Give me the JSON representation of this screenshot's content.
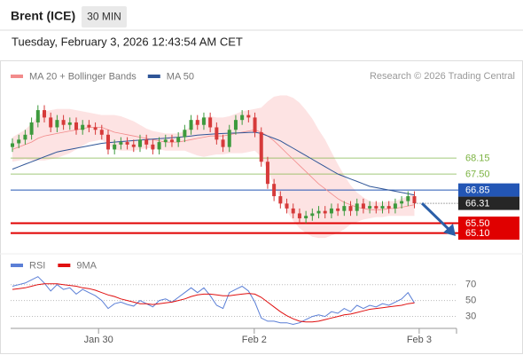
{
  "header": {
    "title": "Brent (ICE)",
    "timeframe": "30 MIN",
    "timestamp": "Tuesday, February 3, 2026 12:43:54 AM CET"
  },
  "chart_data": [
    {
      "type": "candlestick",
      "open": [
        68.6,
        68.75,
        68.9,
        69.1,
        69.6,
        70.1,
        69.8,
        69.4,
        69.7,
        69.5,
        69.6,
        69.3,
        69.5,
        69.4,
        69.3,
        69.1,
        68.5,
        68.7,
        68.8,
        68.7,
        68.6,
        68.9,
        68.7,
        68.5,
        68.8,
        68.9,
        68.8,
        69.0,
        69.3,
        69.7,
        69.5,
        69.8,
        69.4,
        68.9,
        68.6,
        69.3,
        69.7,
        69.9,
        69.8,
        69.2,
        68.0,
        67.1,
        66.6,
        66.3,
        66.1,
        65.9,
        65.7,
        65.8,
        65.9,
        66.0,
        65.9,
        66.1,
        66.0,
        66.2,
        66.0,
        66.3,
        66.1,
        66.2,
        66.1,
        66.2,
        66.1,
        66.3,
        66.4,
        66.6
      ],
      "high": [
        68.95,
        69.1,
        69.3,
        69.8,
        70.3,
        70.3,
        70.0,
        69.9,
        69.9,
        69.8,
        69.8,
        69.7,
        69.7,
        69.6,
        69.5,
        69.3,
        68.9,
        69.0,
        69.0,
        68.9,
        69.1,
        69.1,
        68.9,
        69.0,
        69.1,
        69.1,
        69.2,
        69.5,
        69.9,
        69.9,
        70.0,
        70.0,
        69.6,
        69.1,
        69.5,
        69.9,
        70.1,
        70.1,
        70.0,
        69.4,
        68.2,
        67.3,
        66.8,
        66.5,
        66.3,
        66.1,
        66.0,
        66.1,
        66.2,
        66.2,
        66.3,
        66.3,
        66.4,
        66.4,
        66.5,
        66.5,
        66.4,
        66.4,
        66.4,
        66.4,
        66.5,
        66.6,
        66.8,
        66.8
      ],
      "low": [
        68.4,
        68.55,
        68.7,
        68.9,
        69.4,
        69.6,
        69.2,
        69.2,
        69.3,
        69.3,
        69.1,
        69.1,
        69.2,
        69.1,
        68.9,
        68.3,
        68.3,
        68.5,
        68.5,
        68.4,
        68.4,
        68.5,
        68.3,
        68.3,
        68.6,
        68.6,
        68.6,
        68.8,
        69.1,
        69.3,
        69.3,
        69.2,
        68.7,
        68.4,
        68.4,
        69.1,
        69.5,
        69.6,
        69.0,
        67.8,
        66.9,
        66.4,
        66.1,
        65.9,
        65.7,
        65.5,
        65.5,
        65.6,
        65.7,
        65.7,
        65.7,
        65.8,
        65.8,
        65.8,
        65.8,
        65.9,
        65.9,
        65.9,
        65.9,
        65.9,
        65.9,
        66.1,
        66.2,
        66.11
      ],
      "close": [
        68.75,
        68.9,
        69.1,
        69.6,
        70.1,
        69.8,
        69.4,
        69.7,
        69.5,
        69.6,
        69.3,
        69.5,
        69.4,
        69.3,
        69.1,
        68.5,
        68.7,
        68.8,
        68.7,
        68.6,
        68.9,
        68.7,
        68.5,
        68.8,
        68.9,
        68.8,
        69.0,
        69.3,
        69.7,
        69.5,
        69.8,
        69.4,
        68.9,
        68.6,
        69.3,
        69.7,
        69.9,
        69.8,
        69.2,
        68.0,
        67.1,
        66.6,
        66.3,
        66.1,
        65.9,
        65.7,
        65.8,
        65.9,
        66.0,
        65.9,
        66.1,
        66.0,
        66.2,
        66.0,
        66.3,
        66.1,
        66.2,
        66.1,
        66.2,
        66.1,
        66.3,
        66.4,
        66.6,
        66.31
      ],
      "up_color": "#3d9a3d",
      "down_color": "#d63a3a",
      "last_color": "#262626",
      "overlays": [
        {
          "name": "MA 20 + Bollinger Bands",
          "color": "#f28b8b",
          "band_color": "#fde3e3",
          "values": [
            68.5,
            68.6,
            68.7,
            68.8,
            68.95,
            69.05,
            69.1,
            69.15,
            69.2,
            69.25,
            69.3,
            69.35,
            69.4,
            69.4,
            69.4,
            69.3,
            69.2,
            69.15,
            69.1,
            69.05,
            69.0,
            68.95,
            68.9,
            68.85,
            68.8,
            68.8,
            68.8,
            68.85,
            68.9,
            68.95,
            69.0,
            69.05,
            69.05,
            69.05,
            69.1,
            69.15,
            69.2,
            69.25,
            69.3,
            69.2,
            69.05,
            68.85,
            68.6,
            68.35,
            68.1,
            67.85,
            67.6,
            67.35,
            67.1,
            66.9,
            66.7,
            66.5,
            66.35,
            66.25,
            66.15,
            66.1,
            66.05,
            66.05,
            66.05,
            66.1,
            66.1,
            66.15,
            66.2,
            66.25
          ],
          "upper": [
            69.0,
            69.15,
            69.3,
            69.55,
            69.85,
            70.05,
            70.1,
            70.15,
            70.15,
            70.15,
            70.1,
            70.05,
            70.0,
            69.95,
            69.9,
            69.9,
            69.9,
            69.85,
            69.75,
            69.65,
            69.5,
            69.35,
            69.25,
            69.2,
            69.15,
            69.15,
            69.15,
            69.25,
            69.45,
            69.65,
            69.8,
            69.85,
            69.8,
            69.8,
            69.85,
            69.95,
            70.05,
            70.1,
            70.15,
            70.2,
            70.45,
            70.65,
            70.7,
            70.7,
            70.6,
            70.4,
            70.1,
            69.75,
            69.3,
            68.9,
            68.4,
            67.9,
            67.45,
            67.05,
            66.75,
            66.55,
            66.4,
            66.35,
            66.35,
            66.4,
            66.4,
            66.5,
            66.6,
            66.7
          ],
          "lower": [
            68.0,
            68.05,
            68.1,
            68.05,
            68.05,
            68.05,
            68.1,
            68.15,
            68.25,
            68.35,
            68.5,
            68.65,
            68.8,
            68.85,
            68.9,
            68.7,
            68.5,
            68.45,
            68.45,
            68.45,
            68.5,
            68.55,
            68.55,
            68.5,
            68.45,
            68.45,
            68.45,
            68.45,
            68.35,
            68.25,
            68.2,
            68.25,
            68.3,
            68.3,
            68.35,
            68.35,
            68.35,
            68.4,
            68.45,
            68.2,
            67.65,
            67.05,
            66.5,
            66.0,
            65.6,
            65.3,
            65.1,
            64.95,
            64.9,
            64.9,
            65.0,
            65.1,
            65.25,
            65.45,
            65.55,
            65.65,
            65.7,
            65.75,
            65.75,
            65.8,
            65.8,
            65.8,
            65.8,
            65.8
          ]
        },
        {
          "name": "MA 50",
          "color": "#2f5597",
          "values": [
            67.7,
            67.8,
            67.9,
            68.0,
            68.1,
            68.2,
            68.3,
            68.4,
            68.45,
            68.5,
            68.55,
            68.6,
            68.65,
            68.7,
            68.75,
            68.78,
            68.8,
            68.82,
            68.84,
            68.86,
            68.88,
            68.9,
            68.92,
            68.94,
            68.96,
            68.98,
            69.0,
            69.02,
            69.05,
            69.08,
            69.1,
            69.12,
            69.14,
            69.15,
            69.16,
            69.17,
            69.18,
            69.19,
            69.2,
            69.15,
            69.05,
            68.95,
            68.85,
            68.7,
            68.55,
            68.4,
            68.25,
            68.1,
            67.95,
            67.8,
            67.65,
            67.5,
            67.4,
            67.3,
            67.2,
            67.1,
            67.0,
            66.95,
            66.9,
            66.85,
            66.8,
            66.75,
            66.7,
            66.65
          ]
        }
      ],
      "levels": {
        "values": [
          68.15,
          67.5,
          66.85,
          65.5,
          65.1
        ],
        "value_labels": [
          "68.15",
          "67.50",
          "66.85",
          "65.50",
          "65.10"
        ],
        "colors": [
          "#7cb342",
          "#7cb342",
          "#2356b5",
          "#e00000",
          "#e00000"
        ],
        "boxed": [
          false,
          false,
          true,
          true,
          true
        ]
      },
      "credit": "Research © 2026 Trading Central",
      "xlim": [
        -0.28,
        69.6
      ],
      "ylim": [
        64.4,
        71.15
      ]
    },
    {
      "type": "line",
      "series": [
        {
          "name": "RSI",
          "color": "#5b7fd6",
          "values": [
            68,
            70,
            72,
            76,
            80,
            72,
            62,
            70,
            64,
            66,
            58,
            64,
            60,
            56,
            50,
            40,
            46,
            48,
            45,
            43,
            50,
            46,
            42,
            50,
            52,
            48,
            54,
            60,
            66,
            60,
            66,
            56,
            44,
            40,
            60,
            64,
            68,
            62,
            48,
            28,
            24,
            24,
            22,
            22,
            20,
            22,
            26,
            30,
            32,
            30,
            36,
            34,
            40,
            36,
            44,
            40,
            44,
            42,
            46,
            44,
            48,
            52,
            60,
            47
          ]
        },
        {
          "name": "9MA",
          "color": "#e01010",
          "values": [
            64,
            65,
            66,
            68,
            70,
            71,
            71,
            71,
            70,
            69,
            68,
            66,
            65,
            63,
            60,
            57,
            55,
            52,
            50,
            48,
            46,
            46,
            45,
            46,
            47,
            48,
            50,
            52,
            55,
            57,
            58,
            58,
            57,
            56,
            56,
            57,
            58,
            59,
            58,
            54,
            48,
            42,
            36,
            31,
            27,
            24,
            23,
            23,
            24,
            26,
            28,
            30,
            32,
            33,
            35,
            37,
            39,
            40,
            41,
            42,
            43,
            44,
            46,
            47
          ]
        }
      ],
      "xlim": [
        -0.28,
        69.6
      ],
      "ylim": [
        15,
        102
      ],
      "yticks": [
        70,
        50,
        30
      ],
      "xticks": [
        {
          "value": 13.5,
          "label": "Jan 30"
        },
        {
          "value": 37.9,
          "label": "Feb 2"
        },
        {
          "value": 63.75,
          "label": "Feb 3"
        }
      ]
    }
  ]
}
